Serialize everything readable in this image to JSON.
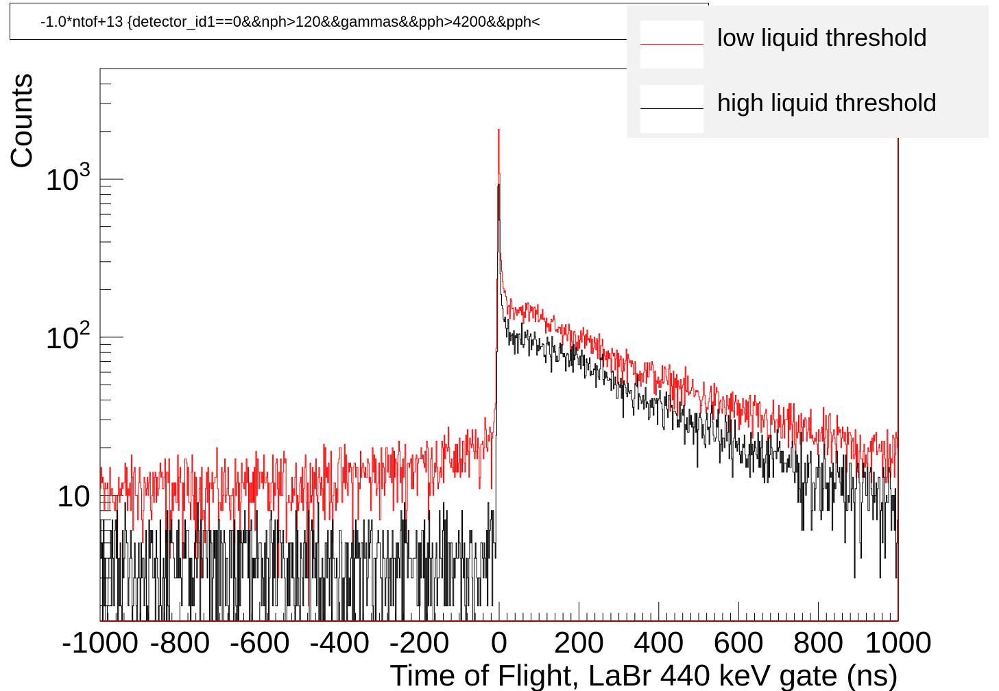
{
  "title": "-1.0*ntof+13 {detector_id1==0&&nph>120&&gammas&&pph>4200&&pph<",
  "legend": {
    "items": [
      {
        "label": "low liquid threshold",
        "color": "#ff0000"
      },
      {
        "label": "high liquid threshold",
        "color": "#000000"
      }
    ]
  },
  "chart_data": {
    "type": "line",
    "title": "-1.0*ntof+13 {detector_id1==0&&nph>120&&gammas&&pph>4200&&pph<",
    "xlabel": "Time of Flight, LaBr 440 keV gate (ns)",
    "ylabel": "Counts",
    "xlim": [
      -1000,
      1000
    ],
    "ylim": [
      1.6,
      5000
    ],
    "y_scale": "log",
    "grid": false,
    "legend_position": "top-right",
    "x_ticks": [
      -1000,
      -800,
      -600,
      -400,
      -200,
      0,
      200,
      400,
      600,
      800,
      1000
    ],
    "y_ticks": [
      {
        "value": 10,
        "label": "10"
      },
      {
        "value": 100,
        "label": "10^2"
      },
      {
        "value": 1000,
        "label": "10^3"
      }
    ],
    "series": [
      {
        "name": "low liquid threshold",
        "color": "#ff0000",
        "x": [
          -1000,
          -900,
          -800,
          -700,
          -600,
          -500,
          -400,
          -300,
          -200,
          -100,
          -40,
          -20,
          -8,
          -2,
          0,
          2,
          5,
          10,
          20,
          50,
          100,
          150,
          200,
          250,
          300,
          350,
          400,
          450,
          500,
          550,
          600,
          650,
          700,
          750,
          800,
          850,
          900,
          950,
          1000
        ],
        "values": [
          10,
          11,
          11,
          11,
          11,
          12,
          13,
          14,
          16,
          18,
          19,
          22,
          40,
          1600,
          2800,
          400,
          300,
          220,
          160,
          150,
          140,
          110,
          100,
          85,
          70,
          62,
          55,
          49,
          43,
          38,
          34,
          31,
          28,
          26,
          24,
          22,
          20,
          19,
          18
        ]
      },
      {
        "name": "high liquid threshold",
        "color": "#000000",
        "x": [
          -1000,
          -900,
          -800,
          -700,
          -600,
          -500,
          -400,
          -300,
          -200,
          -100,
          -40,
          -20,
          -8,
          -2,
          0,
          2,
          5,
          10,
          20,
          50,
          100,
          150,
          200,
          250,
          300,
          350,
          400,
          450,
          500,
          550,
          600,
          650,
          700,
          750,
          800,
          850,
          900,
          950,
          1000
        ],
        "values": [
          4,
          4,
          4,
          4,
          4,
          4,
          4,
          4,
          4,
          4,
          4,
          5,
          10,
          700,
          1100,
          280,
          200,
          150,
          110,
          100,
          90,
          80,
          72,
          60,
          50,
          43,
          37,
          32,
          28,
          24,
          21,
          19,
          17,
          15,
          13,
          12,
          11,
          10,
          9
        ]
      }
    ]
  }
}
